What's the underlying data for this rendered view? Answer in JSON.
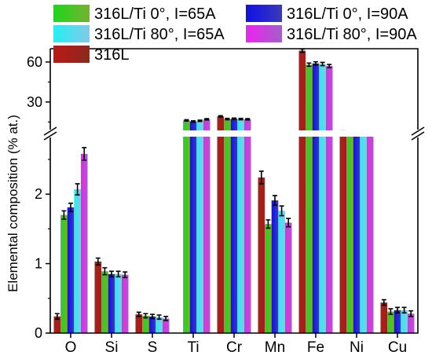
{
  "chart_data": {
    "type": "bar",
    "ylabel": "Elemental composition (% at.)",
    "y_axis_break": true,
    "ylim_lower": [
      0,
      2.85
    ],
    "ylim_upper": [
      0,
      70
    ],
    "y_ticks_lower": [
      "0",
      "1",
      "2"
    ],
    "y_ticks_upper": [
      "30",
      "60"
    ],
    "categories": [
      "O",
      "Si",
      "S",
      "Ti",
      "Cr",
      "Mn",
      "Fe",
      "Ni",
      "Cu"
    ],
    "legend_placement": "top",
    "series": [
      {
        "name": "316L",
        "color": "#dd1111",
        "values": [
          0.24,
          1.03,
          0.27,
          null,
          19.2,
          2.24,
          68.5,
          8.0,
          0.44
        ],
        "errors": [
          0.04,
          0.05,
          0.03,
          null,
          0.5,
          0.09,
          1.2,
          0.3,
          0.04
        ]
      },
      {
        "name": "316L/Ti 0°, I=65A",
        "color": "#22dd22",
        "values": [
          1.7,
          0.89,
          0.25,
          16.2,
          17.2,
          1.57,
          58.0,
          7.1,
          0.31
        ],
        "errors": [
          0.06,
          0.05,
          0.03,
          0.5,
          0.5,
          0.06,
          1.2,
          0.3,
          0.04
        ]
      },
      {
        "name": "316L/Ti 0°, I=90A",
        "color": "#1111dd",
        "values": [
          1.81,
          0.85,
          0.24,
          15.4,
          17.4,
          1.91,
          59.0,
          7.0,
          0.33
        ],
        "errors": [
          0.06,
          0.04,
          0.03,
          0.5,
          0.5,
          0.07,
          1.2,
          0.3,
          0.04
        ]
      },
      {
        "name": "316L/Ti 80°, I=65A",
        "color": "#22eeee",
        "values": [
          2.07,
          0.85,
          0.23,
          15.9,
          17.2,
          1.76,
          58.5,
          7.0,
          0.33
        ],
        "errors": [
          0.08,
          0.04,
          0.03,
          0.5,
          0.5,
          0.07,
          1.2,
          0.3,
          0.04
        ]
      },
      {
        "name": "316L/Ti 80°, I=90A",
        "color": "#ee22ee",
        "values": [
          2.58,
          0.84,
          0.21,
          17.0,
          17.0,
          1.59,
          57.0,
          7.0,
          0.28
        ],
        "errors": [
          0.09,
          0.04,
          0.03,
          0.5,
          0.5,
          0.06,
          1.2,
          0.3,
          0.04
        ]
      }
    ]
  }
}
